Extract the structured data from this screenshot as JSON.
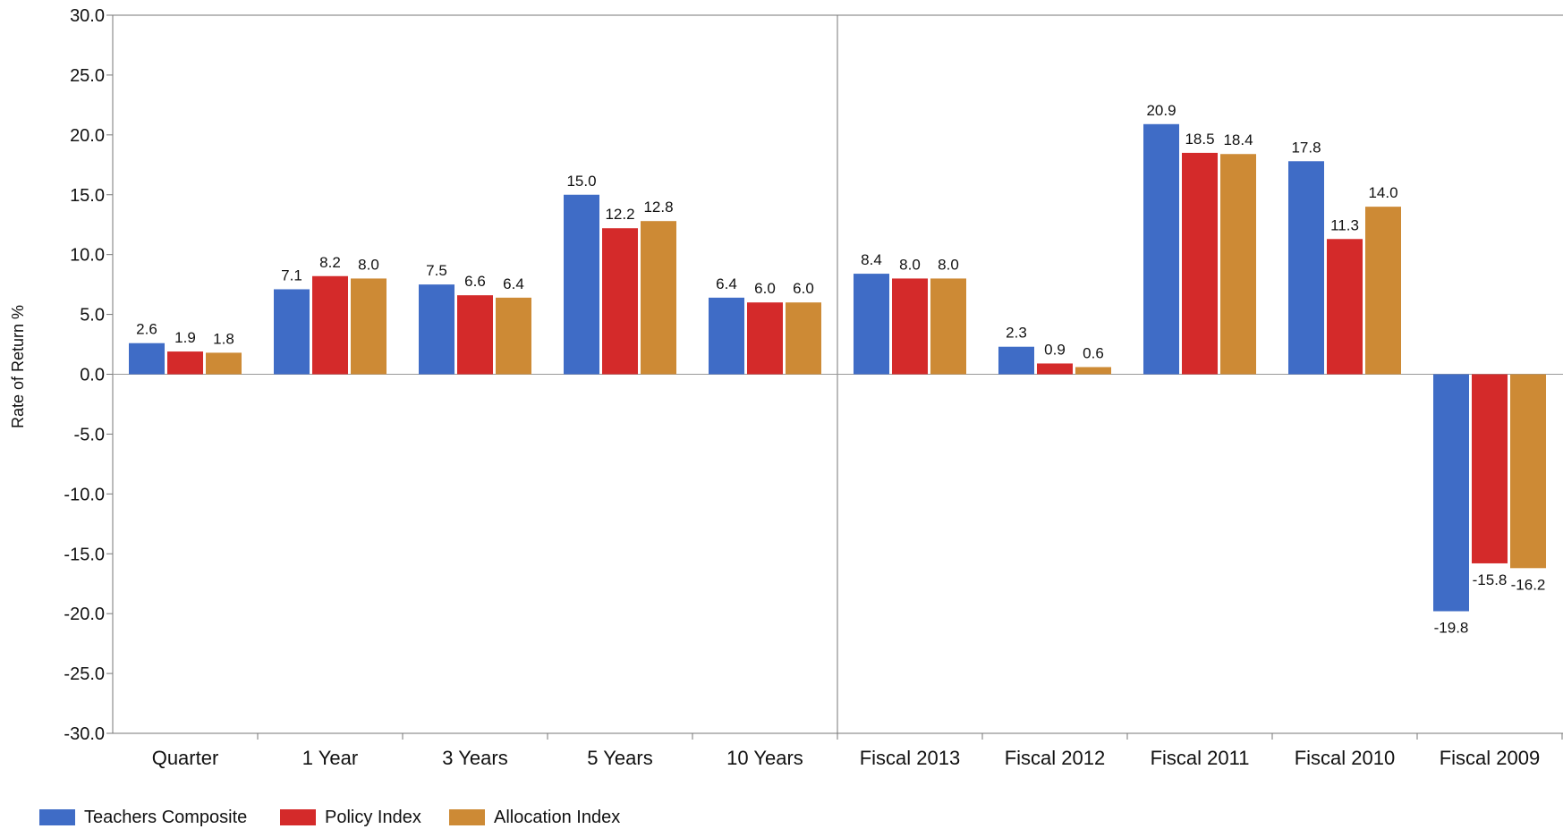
{
  "chart_data": {
    "type": "bar",
    "ylabel": "Rate of Return %",
    "ylim": [
      -30,
      30
    ],
    "yticks": [
      "30.0",
      "25.0",
      "20.0",
      "15.0",
      "10.0",
      "5.0",
      "0.0",
      "-5.0",
      "-10.0",
      "-15.0",
      "-20.0",
      "-25.0",
      "-30.0"
    ],
    "categories": [
      "Quarter",
      "1 Year",
      "3 Years",
      "5 Years",
      "10 Years",
      "Fiscal 2013",
      "Fiscal 2012",
      "Fiscal 2011",
      "Fiscal 2010",
      "Fiscal 2009"
    ],
    "series": [
      {
        "name": "Teachers Composite",
        "color": "#3f6cc6",
        "values": [
          2.6,
          7.1,
          7.5,
          15.0,
          6.4,
          8.4,
          2.3,
          20.9,
          17.8,
          -19.8
        ],
        "labels": [
          "2.6",
          "7.1",
          "7.5",
          "15.0",
          "6.4",
          "8.4",
          "2.3",
          "20.9",
          "17.8",
          "-19.8"
        ]
      },
      {
        "name": "Policy Index",
        "color": "#d42a2a",
        "values": [
          1.9,
          8.2,
          6.6,
          12.2,
          6.0,
          8.0,
          0.9,
          18.5,
          11.3,
          -15.8
        ],
        "labels": [
          "1.9",
          "8.2",
          "6.6",
          "12.2",
          "6.0",
          "8.0",
          "0.9",
          "18.5",
          "11.3",
          "-15.8"
        ]
      },
      {
        "name": "Allocation Index",
        "color": "#cd8a35",
        "values": [
          1.8,
          8.0,
          6.4,
          12.8,
          6.0,
          8.0,
          0.6,
          18.4,
          14.0,
          -16.2
        ],
        "labels": [
          "1.8",
          "8.0",
          "6.4",
          "12.8",
          "6.0",
          "8.0",
          "0.6",
          "18.4",
          "14.0",
          "-16.2"
        ]
      }
    ],
    "grid": false,
    "legend_position": "bottom-left"
  }
}
